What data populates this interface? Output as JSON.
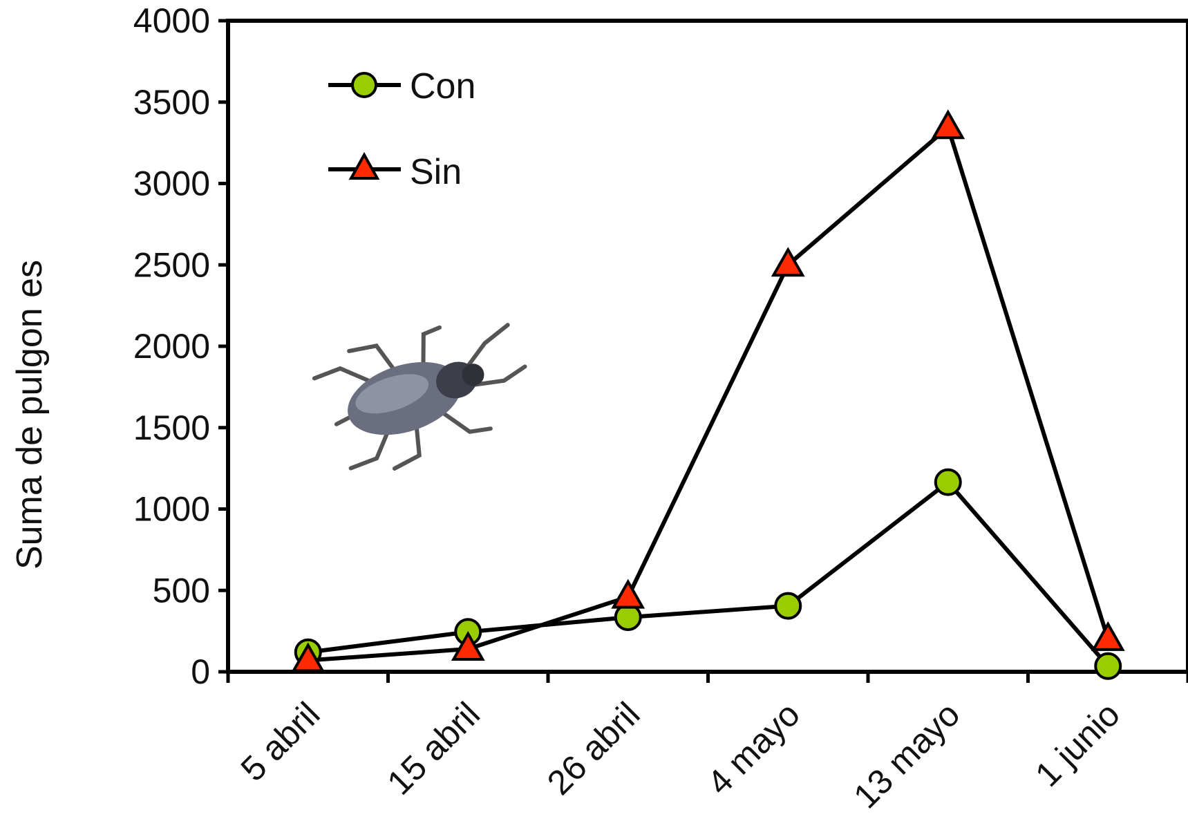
{
  "chart_data": {
    "type": "line",
    "title": "",
    "xlabel": "",
    "ylabel": "Suma de pulgon es",
    "categories": [
      "5 abril",
      "15 abril",
      "26 abril",
      "4 mayo",
      "13 mayo",
      "1 junio"
    ],
    "ylim": [
      0,
      4000
    ],
    "yticks": [
      0,
      500,
      1000,
      1500,
      2000,
      2500,
      3000,
      3500,
      4000
    ],
    "grid": false,
    "legend_position": "top-left",
    "series": [
      {
        "name": "Con",
        "marker": "circle",
        "color": "#9acd00",
        "values": [
          120,
          245,
          335,
          405,
          1165,
          35
        ]
      },
      {
        "name": "Sin",
        "marker": "triangle",
        "color": "#ff2a00",
        "values": [
          70,
          140,
          460,
          2500,
          3345,
          200
        ]
      }
    ],
    "illustration": "aphid-icon"
  }
}
